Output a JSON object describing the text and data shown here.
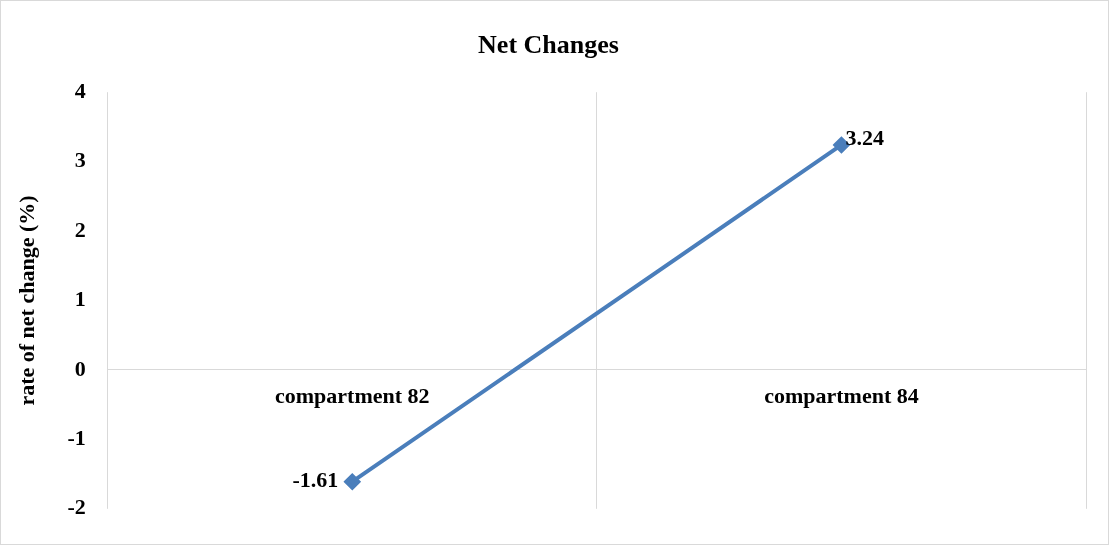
{
  "chart_data": {
    "type": "line",
    "title": "Net Changes",
    "ylabel": "rate of net change (%)",
    "categories": [
      "compartment 82",
      "compartment 84"
    ],
    "series": [
      {
        "color": "#4a7ebb",
        "values": [
          -1.61,
          3.24
        ]
      }
    ],
    "ylim": [
      -2,
      4
    ],
    "yticks": [
      -2,
      -1,
      0,
      1,
      2,
      3,
      4
    ],
    "grid": "x",
    "marker": "diamond",
    "data_labels": true,
    "legend": false
  }
}
